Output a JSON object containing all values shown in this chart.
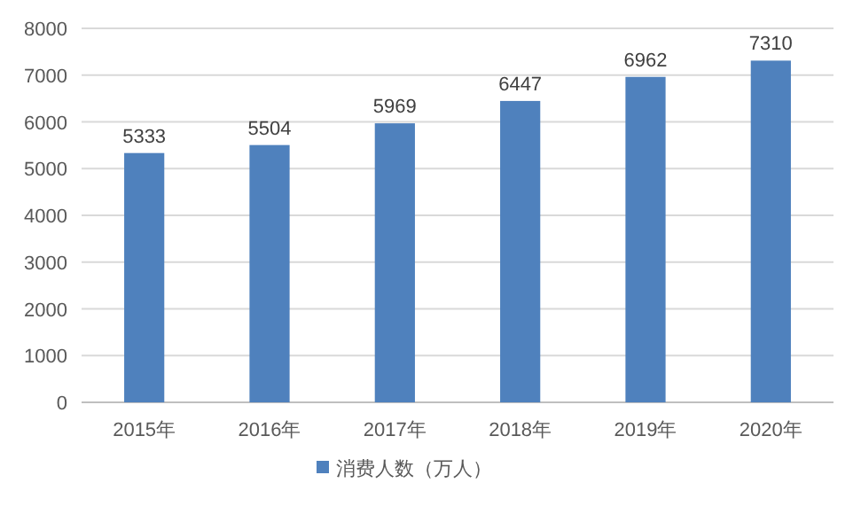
{
  "chart_data": {
    "type": "bar",
    "categories": [
      "2015年",
      "2016年",
      "2017年",
      "2018年",
      "2019年",
      "2020年"
    ],
    "series": [
      {
        "name": "消费人数（万人）",
        "color": "#4f81bd",
        "values": [
          5333,
          5504,
          5969,
          6447,
          6962,
          7310
        ]
      }
    ],
    "ylim": [
      0,
      8000
    ],
    "yticks": [
      0,
      1000,
      2000,
      3000,
      4000,
      5000,
      6000,
      7000,
      8000
    ],
    "grid": "y",
    "legend": "bottom",
    "data_labels": true
  }
}
